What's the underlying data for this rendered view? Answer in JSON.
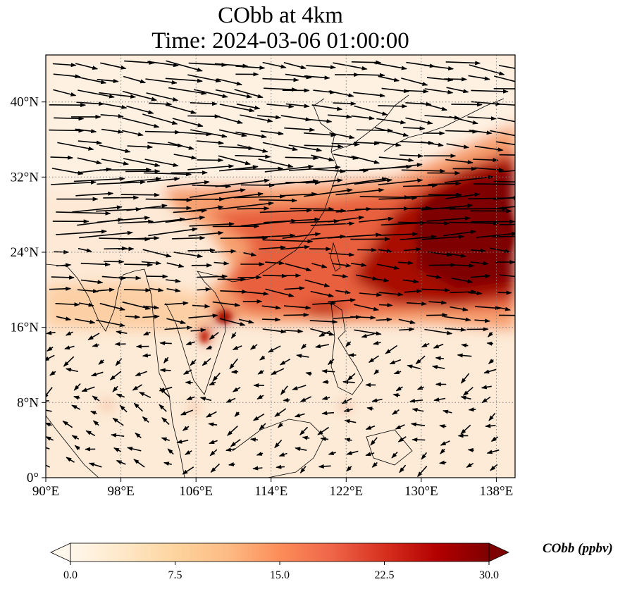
{
  "title": {
    "line1": "CObb at 4km",
    "line2": "Time: 2024-03-06 01:00:00"
  },
  "map": {
    "lon_range": [
      90,
      140
    ],
    "lat_range": [
      0,
      45
    ],
    "x_ticks": [
      "90°E",
      "98°E",
      "106°E",
      "114°E",
      "122°E",
      "130°E",
      "138°E"
    ],
    "y_ticks": [
      "0°",
      "8°N",
      "16°N",
      "24°N",
      "32°N",
      "40°N"
    ],
    "gridlines": "dotted",
    "field_colors": {
      "low": "#fff5eb",
      "light": "#fdd9b4",
      "mid": "#f08a5a",
      "high": "#c2260e",
      "max": "#7f0000"
    }
  },
  "colorbar": {
    "label": "CObb (ppbv)",
    "ticks": [
      "0.0",
      "7.5",
      "15.0",
      "22.5",
      "30.0"
    ],
    "range": [
      0,
      30
    ],
    "extend": "both",
    "colormap": "OrRd"
  }
}
